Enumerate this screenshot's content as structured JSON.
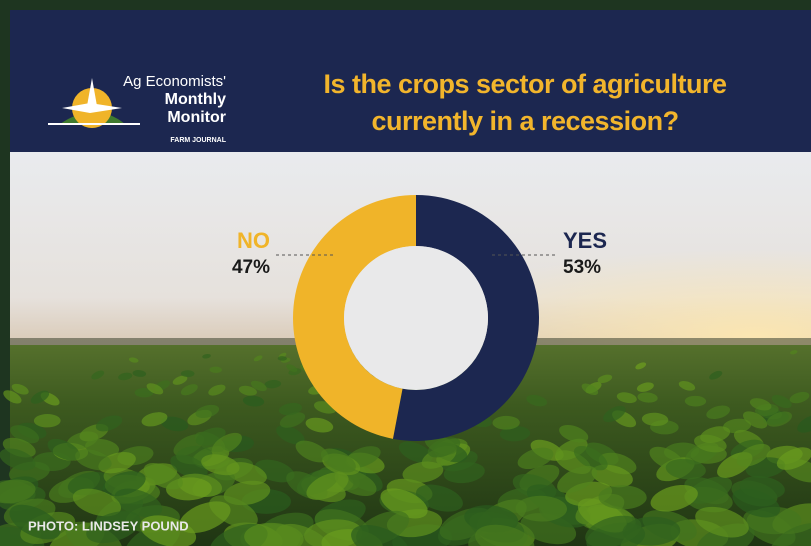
{
  "header": {
    "logo_lines": [
      "Ag Economists'",
      "Monthly",
      "Monitor"
    ],
    "publisher": "FARM JOURNAL"
  },
  "chart_data": {
    "type": "donut",
    "title": "Is the crops sector of agriculture currently in a recession?",
    "categories": [
      "YES",
      "NO"
    ],
    "values": [
      53,
      47
    ],
    "value_labels": [
      "53%",
      "47%"
    ],
    "colors": [
      "#1c2750",
      "#f0b429"
    ]
  },
  "photo_credit": "PHOTO: LINDSEY POUND"
}
